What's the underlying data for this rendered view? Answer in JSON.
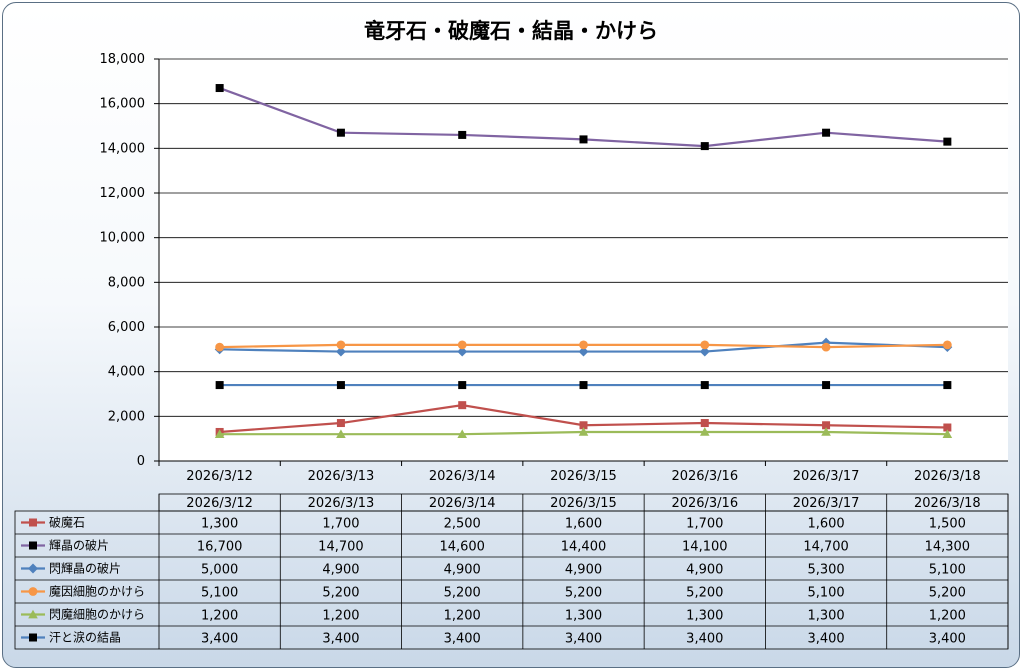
{
  "chart_data": {
    "type": "line",
    "title": "竜牙石・破魔石・結晶・かけら",
    "categories": [
      "2026/3/12",
      "2026/3/13",
      "2026/3/14",
      "2026/3/15",
      "2026/3/16",
      "2026/3/17",
      "2026/3/18"
    ],
    "ylim": [
      0,
      18000
    ],
    "yticks": [
      "0",
      "2,000",
      "4,000",
      "6,000",
      "8,000",
      "10,000",
      "12,000",
      "14,000",
      "16,000",
      "18,000"
    ],
    "grid": true,
    "legend": "data-table",
    "series": [
      {
        "name": "破魔石",
        "color": "#c0504d",
        "marker": "square",
        "values": [
          1300,
          1700,
          2500,
          1600,
          1700,
          1600,
          1500
        ],
        "labels": [
          "1,300",
          "1,700",
          "2,500",
          "1,600",
          "1,700",
          "1,600",
          "1,500"
        ]
      },
      {
        "name": "輝晶の破片",
        "color": "#8064a2",
        "marker": "square-black",
        "values": [
          16700,
          14700,
          14600,
          14400,
          14100,
          14700,
          14300
        ],
        "labels": [
          "16,700",
          "14,700",
          "14,600",
          "14,400",
          "14,100",
          "14,700",
          "14,300"
        ]
      },
      {
        "name": "閃輝晶の破片",
        "color": "#4f81bd",
        "marker": "diamond",
        "values": [
          5000,
          4900,
          4900,
          4900,
          4900,
          5300,
          5100
        ],
        "labels": [
          "5,000",
          "4,900",
          "4,900",
          "4,900",
          "4,900",
          "5,300",
          "5,100"
        ]
      },
      {
        "name": "魔因細胞のかけら",
        "color": "#f79646",
        "marker": "circle",
        "values": [
          5100,
          5200,
          5200,
          5200,
          5200,
          5100,
          5200
        ],
        "labels": [
          "5,100",
          "5,200",
          "5,200",
          "5,200",
          "5,200",
          "5,100",
          "5,200"
        ]
      },
      {
        "name": "閃魔細胞のかけら",
        "color": "#9bbb59",
        "marker": "triangle",
        "values": [
          1200,
          1200,
          1200,
          1300,
          1300,
          1300,
          1200
        ],
        "labels": [
          "1,200",
          "1,200",
          "1,200",
          "1,300",
          "1,300",
          "1,300",
          "1,200"
        ]
      },
      {
        "name": "汗と涙の結晶",
        "color": "#4f81bd",
        "marker": "square-black",
        "values": [
          3400,
          3400,
          3400,
          3400,
          3400,
          3400,
          3400
        ],
        "labels": [
          "3,400",
          "3,400",
          "3,400",
          "3,400",
          "3,400",
          "3,400",
          "3,400"
        ]
      }
    ]
  }
}
